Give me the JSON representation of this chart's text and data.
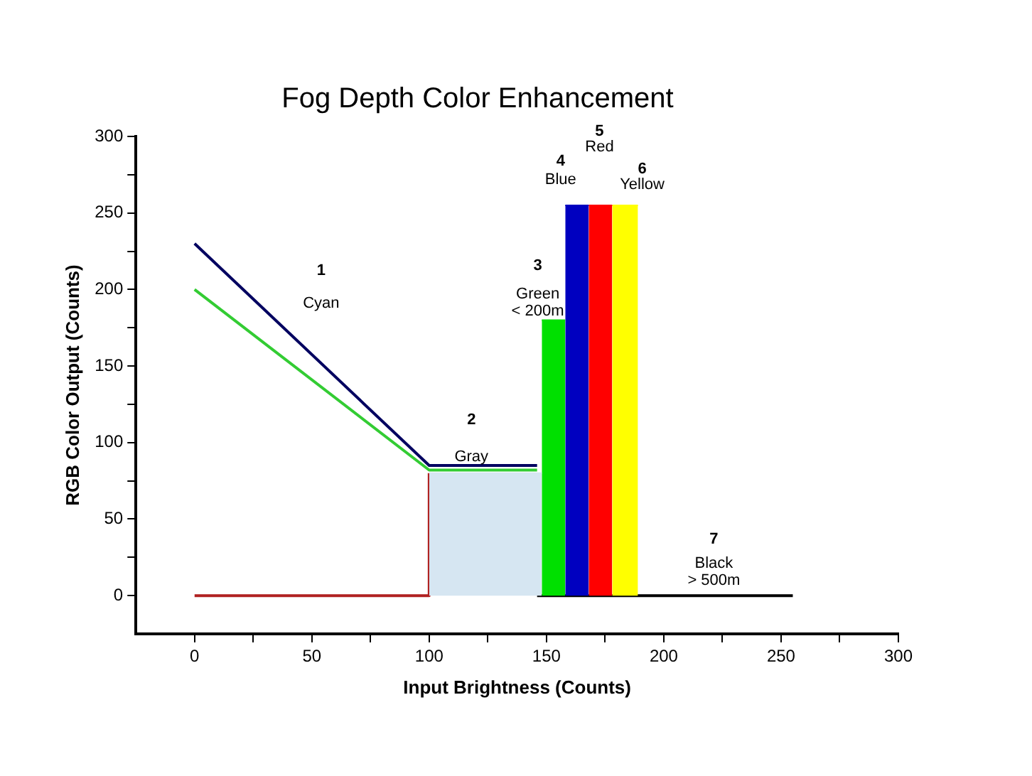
{
  "chart_data": {
    "type": "line",
    "title": "Fog Depth Color Enhancement",
    "xlabel": "Input Brightness (Counts)",
    "ylabel": "RGB Color Output (Counts)",
    "xlim": [
      -25,
      300
    ],
    "ylim": [
      -25,
      300
    ],
    "xticks": [
      0,
      {
        "value": 25,
        "label": null
      },
      50,
      {
        "value": 75,
        "label": null
      },
      100,
      {
        "value": 125,
        "label": null
      },
      150,
      {
        "value": 175,
        "label": null
      },
      200,
      {
        "value": 225,
        "label": null
      },
      250,
      {
        "value": 275,
        "label": null
      },
      300
    ],
    "yticks": [
      0,
      {
        "value": 25,
        "label": null
      },
      50,
      {
        "value": 75,
        "label": null
      },
      100,
      {
        "value": 125,
        "label": null
      },
      150,
      {
        "value": 175,
        "label": null
      },
      200,
      {
        "value": 225,
        "label": null
      },
      250,
      {
        "value": 275,
        "label": null
      },
      300
    ],
    "grid": false,
    "legend": false,
    "series": [
      {
        "type": "area",
        "color": "#d6e6f2",
        "x": [
          100,
          148
        ],
        "values": [
          80,
          80
        ]
      },
      {
        "type": "area",
        "color": "#00e000",
        "x": [
          148,
          158
        ],
        "values": [
          180,
          180
        ]
      },
      {
        "type": "area",
        "color": "#0000c0",
        "x": [
          158,
          168
        ],
        "values": [
          255,
          255
        ]
      },
      {
        "type": "area",
        "color": "#ff0000",
        "x": [
          168,
          178
        ],
        "values": [
          255,
          255
        ]
      },
      {
        "type": "area",
        "color": "#ffff00",
        "x": [
          178,
          189
        ],
        "values": [
          255,
          255
        ]
      },
      {
        "color": "#000060",
        "x": [
          0,
          100,
          146
        ],
        "values": [
          230,
          85,
          85
        ]
      },
      {
        "color": "#33cc33",
        "x": [
          0,
          100,
          146
        ],
        "values": [
          200,
          82,
          82
        ]
      },
      {
        "color": "#b02020",
        "x": [
          0,
          100,
          100
        ],
        "values": [
          0,
          0,
          80
        ]
      },
      {
        "color": "#000000",
        "x": [
          146,
          255
        ],
        "values": [
          0,
          0
        ]
      }
    ],
    "annotations": [
      "1\nCyan",
      "2\nGray",
      "3\nGreen\n< 200m",
      "4\nBlue",
      "5\nRed",
      "6\nYellow",
      "7\nBlack\n> 500m"
    ]
  }
}
